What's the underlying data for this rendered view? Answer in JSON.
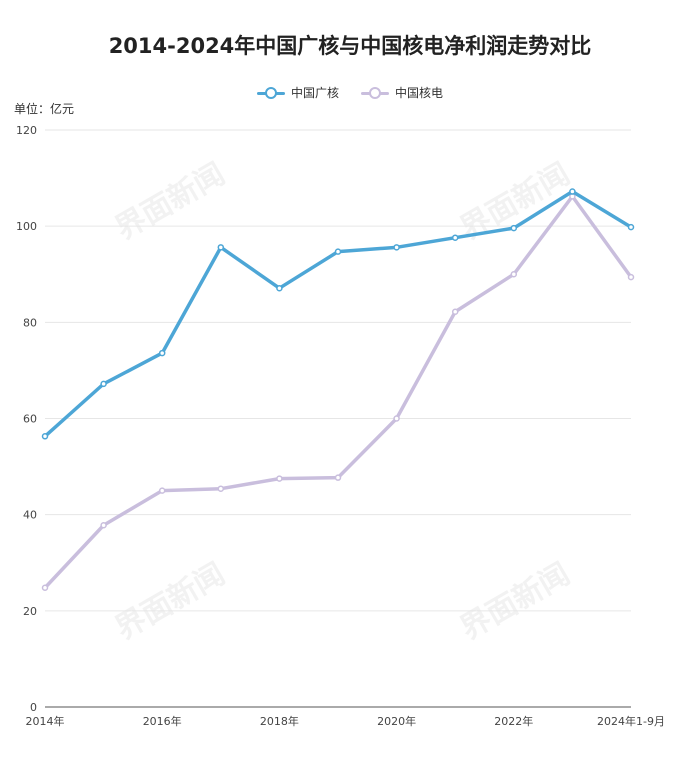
{
  "colors": {
    "cgn": "#4da6d6",
    "cnnc": "#c9bedd",
    "grid": "#e6e6e6",
    "axis": "#555555"
  },
  "watermark": "界面新闻",
  "chart_data": {
    "type": "line",
    "title": "2014-2024年中国广核与中国核电净利润走势对比",
    "unit": "单位：亿元",
    "x_labels": [
      "2014年",
      "",
      "2016年",
      "",
      "2018年",
      "",
      "2020年",
      "",
      "2022年",
      "",
      "2024年1-9月"
    ],
    "ylim": [
      0,
      120
    ],
    "y_ticks": [
      0,
      20,
      40,
      60,
      80,
      100,
      120
    ],
    "grid": true,
    "legend_position": "top-center",
    "series": [
      {
        "name": "中国广核",
        "color": "#4da6d6",
        "values": [
          56.3,
          67.2,
          73.6,
          95.6,
          87.1,
          94.7,
          95.6,
          97.6,
          99.6,
          107.2,
          99.8
        ]
      },
      {
        "name": "中国核电",
        "color": "#c9bedd",
        "values": [
          24.8,
          37.8,
          45.0,
          45.4,
          47.5,
          47.7,
          60.0,
          82.2,
          90.0,
          106.2,
          89.4
        ]
      }
    ]
  }
}
